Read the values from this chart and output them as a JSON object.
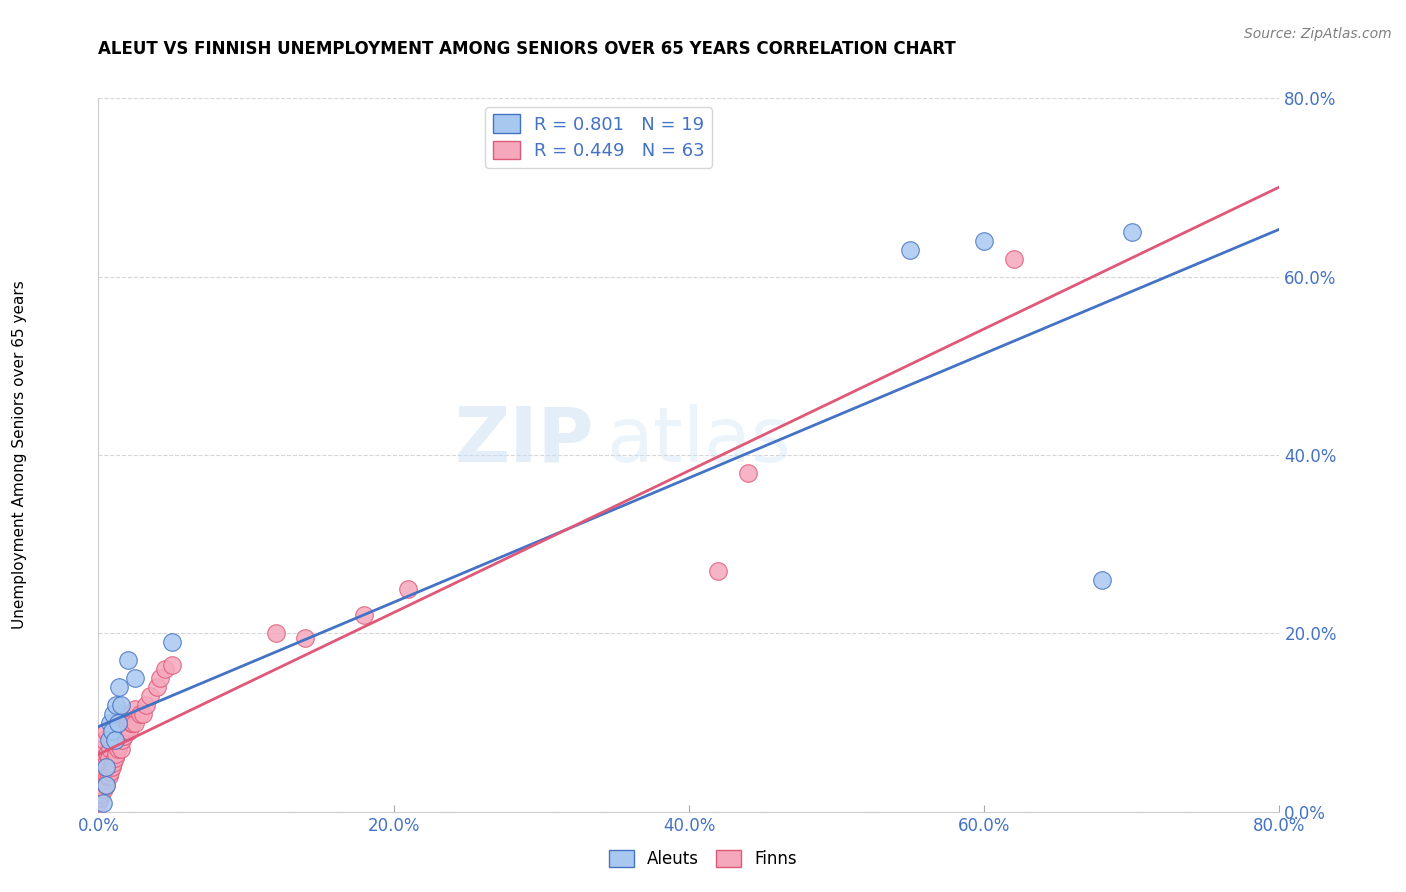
{
  "title": "ALEUT VS FINNISH UNEMPLOYMENT AMONG SENIORS OVER 65 YEARS CORRELATION CHART",
  "source": "Source: ZipAtlas.com",
  "ylabel": "Unemployment Among Seniors over 65 years",
  "xlabel": "",
  "xlim": [
    0.0,
    0.8
  ],
  "ylim": [
    0.0,
    0.8
  ],
  "xticks": [
    0.0,
    0.2,
    0.4,
    0.6,
    0.8
  ],
  "yticks": [
    0.0,
    0.2,
    0.4,
    0.6,
    0.8
  ],
  "aleut_color": "#A8C8F0",
  "finn_color": "#F5A8BC",
  "aleut_line_color": "#4472C4",
  "finn_line_color": "#E05878",
  "aleut_R": 0.801,
  "aleut_N": 19,
  "finn_R": 0.449,
  "finn_N": 63,
  "legend_label_aleut": "Aleuts",
  "legend_label_finn": "Finns",
  "watermark": "ZIPatlas",
  "aleut_x": [
    0.003,
    0.005,
    0.005,
    0.007,
    0.008,
    0.009,
    0.01,
    0.011,
    0.012,
    0.013,
    0.014,
    0.015,
    0.02,
    0.025,
    0.05,
    0.55,
    0.6,
    0.68,
    0.7
  ],
  "aleut_y": [
    0.01,
    0.03,
    0.05,
    0.08,
    0.1,
    0.09,
    0.11,
    0.08,
    0.12,
    0.1,
    0.14,
    0.12,
    0.17,
    0.15,
    0.19,
    0.63,
    0.64,
    0.26,
    0.65
  ],
  "finn_x": [
    0.0,
    0.0,
    0.001,
    0.001,
    0.001,
    0.002,
    0.002,
    0.002,
    0.003,
    0.003,
    0.003,
    0.004,
    0.004,
    0.004,
    0.004,
    0.005,
    0.005,
    0.005,
    0.006,
    0.006,
    0.007,
    0.007,
    0.008,
    0.008,
    0.009,
    0.009,
    0.01,
    0.01,
    0.011,
    0.011,
    0.012,
    0.012,
    0.013,
    0.013,
    0.014,
    0.015,
    0.015,
    0.016,
    0.016,
    0.017,
    0.018,
    0.019,
    0.02,
    0.021,
    0.022,
    0.023,
    0.025,
    0.025,
    0.028,
    0.03,
    0.032,
    0.035,
    0.04,
    0.042,
    0.045,
    0.05,
    0.12,
    0.14,
    0.18,
    0.21,
    0.42,
    0.44,
    0.62
  ],
  "finn_y": [
    0.01,
    0.02,
    0.015,
    0.025,
    0.035,
    0.02,
    0.03,
    0.05,
    0.03,
    0.055,
    0.07,
    0.025,
    0.045,
    0.06,
    0.08,
    0.03,
    0.055,
    0.09,
    0.04,
    0.065,
    0.04,
    0.06,
    0.045,
    0.07,
    0.05,
    0.08,
    0.055,
    0.09,
    0.06,
    0.095,
    0.065,
    0.1,
    0.07,
    0.1,
    0.075,
    0.07,
    0.1,
    0.08,
    0.11,
    0.085,
    0.09,
    0.09,
    0.095,
    0.09,
    0.1,
    0.1,
    0.1,
    0.115,
    0.11,
    0.11,
    0.12,
    0.13,
    0.14,
    0.15,
    0.16,
    0.165,
    0.2,
    0.195,
    0.22,
    0.25,
    0.27,
    0.38,
    0.62
  ]
}
